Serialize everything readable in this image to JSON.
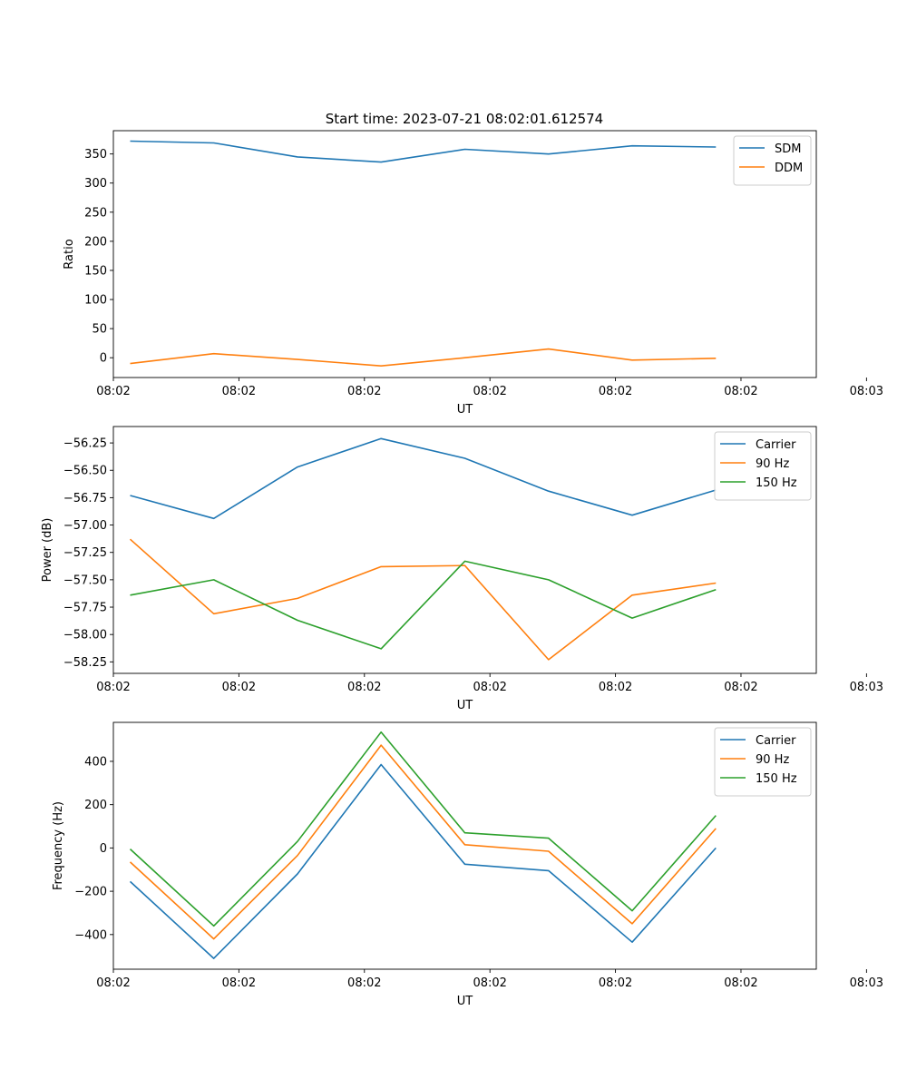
{
  "title": "Start time: 2023-07-21 08:02:01.612574",
  "chart_data": [
    {
      "type": "line",
      "title": "Start time: 2023-07-21 08:02:01.612574",
      "xlabel": "UT",
      "ylabel": "Ratio",
      "x": [
        1,
        2,
        3,
        4,
        5,
        6,
        7,
        8
      ],
      "xlim": [
        0.8,
        9.2
      ],
      "xticks": [
        0.8,
        2.3,
        3.8,
        5.3,
        6.8,
        8.3,
        9.8
      ],
      "xtick_labels": [
        "08:02",
        "08:02",
        "08:02",
        "08:02",
        "08:02",
        "08:02",
        "08:03"
      ],
      "ylim": [
        -34,
        390
      ],
      "yticks": [
        0,
        50,
        100,
        150,
        200,
        250,
        300,
        350
      ],
      "ytick_labels": [
        "0",
        "50",
        "100",
        "150",
        "200",
        "250",
        "300",
        "350"
      ],
      "legend": "top-right",
      "grid": false,
      "series": [
        {
          "name": "SDM",
          "color": "#1f77b4",
          "values": [
            372,
            369,
            345,
            336,
            358,
            350,
            364,
            362
          ]
        },
        {
          "name": "DDM",
          "color": "#ff7f0e",
          "values": [
            -10,
            7,
            -3,
            -14,
            0,
            15,
            -4,
            -1
          ]
        }
      ]
    },
    {
      "type": "line",
      "title": "",
      "xlabel": "UT",
      "ylabel": "Power (dB)",
      "x": [
        1,
        2,
        3,
        4,
        5,
        6,
        7,
        8
      ],
      "xlim": [
        0.8,
        9.2
      ],
      "xticks": [
        0.8,
        2.3,
        3.8,
        5.3,
        6.8,
        8.3,
        9.8
      ],
      "xtick_labels": [
        "08:02",
        "08:02",
        "08:02",
        "08:02",
        "08:02",
        "08:02",
        "08:03"
      ],
      "ylim": [
        -58.355,
        -56.1
      ],
      "yticks": [
        -58.25,
        -58.0,
        -57.75,
        -57.5,
        -57.25,
        -57.0,
        -56.75,
        -56.5,
        -56.25
      ],
      "ytick_labels": [
        "−58.25",
        "−58.00",
        "−57.75",
        "−57.50",
        "−57.25",
        "−57.00",
        "−56.75",
        "−56.50",
        "−56.25"
      ],
      "legend": "top-right",
      "grid": false,
      "series": [
        {
          "name": "Carrier",
          "color": "#1f77b4",
          "values": [
            -56.73,
            -56.94,
            -56.47,
            -56.21,
            -56.39,
            -56.69,
            -56.91,
            -56.68
          ]
        },
        {
          "name": "90 Hz",
          "color": "#ff7f0e",
          "values": [
            -57.13,
            -57.81,
            -57.67,
            -57.38,
            -57.37,
            -58.23,
            -57.64,
            -57.53
          ]
        },
        {
          "name": "150 Hz",
          "color": "#2ca02c",
          "values": [
            -57.64,
            -57.5,
            -57.87,
            -58.13,
            -57.33,
            -57.5,
            -57.85,
            -57.59
          ]
        }
      ]
    },
    {
      "type": "line",
      "title": "",
      "xlabel": "UT",
      "ylabel": "Frequency (Hz)",
      "x": [
        1,
        2,
        3,
        4,
        5,
        6,
        7,
        8
      ],
      "xlim": [
        0.8,
        9.2
      ],
      "xticks": [
        0.8,
        2.3,
        3.8,
        5.3,
        6.8,
        8.3,
        9.8
      ],
      "xtick_labels": [
        "08:02",
        "08:02",
        "08:02",
        "08:02",
        "08:02",
        "08:02",
        "08:03"
      ],
      "ylim": [
        -560,
        580
      ],
      "yticks": [
        -400,
        -200,
        0,
        200,
        400
      ],
      "ytick_labels": [
        "−400",
        "−200",
        "0",
        "200",
        "400"
      ],
      "legend": "top-right",
      "grid": false,
      "series": [
        {
          "name": "Carrier",
          "color": "#1f77b4",
          "values": [
            -155,
            -510,
            -120,
            385,
            -75,
            -105,
            -435,
            0
          ]
        },
        {
          "name": "90 Hz",
          "color": "#ff7f0e",
          "values": [
            -65,
            -420,
            -35,
            475,
            15,
            -15,
            -350,
            90
          ]
        },
        {
          "name": "150 Hz",
          "color": "#2ca02c",
          "values": [
            -5,
            -360,
            30,
            535,
            70,
            45,
            -290,
            150
          ]
        }
      ]
    }
  ]
}
